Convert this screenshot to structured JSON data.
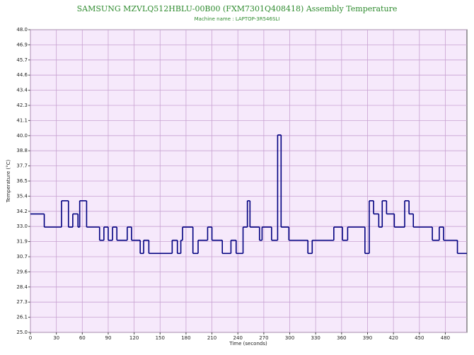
{
  "chart_data": {
    "type": "step-line",
    "title": "SAMSUNG MZVLQ512HBLU-00B00 (FXM7301Q408418) Assembly Temperature",
    "subtitle": "Machine name : LAPTOP-3R546SLI",
    "x_label": "Time (seconds)",
    "y_label": "Temperature (°C)",
    "grid": true,
    "background": "#f6e9fb",
    "grid_color": "#c8a2d2",
    "xlim": [
      0,
      505
    ],
    "xticks": [
      0,
      30,
      60,
      90,
      120,
      150,
      180,
      210,
      240,
      270,
      300,
      330,
      360,
      390,
      420,
      450,
      480
    ],
    "ylim": [
      25,
      48
    ],
    "yticks": [
      {
        "value": 25,
        "label": "25.0"
      },
      {
        "value": 26.15,
        "label": "26.1"
      },
      27.3,
      {
        "value": 28.45,
        "label": "28.4"
      },
      29.6,
      {
        "value": 30.75,
        "label": "30.7"
      },
      31.9,
      {
        "value": 33.05,
        "label": "33.0"
      },
      34.2,
      {
        "value": 35.35,
        "label": "35.4"
      },
      36.5,
      {
        "value": 37.65,
        "label": "37.7"
      },
      38.8,
      {
        "value": 39.95,
        "label": "40.0"
      },
      41.1,
      {
        "value": 42.25,
        "label": "42.3"
      },
      43.4,
      {
        "value": 44.55,
        "label": "44.6"
      },
      45.7,
      {
        "value": 46.85,
        "label": "46.9"
      },
      {
        "value": 48,
        "label": "48.0"
      }
    ],
    "series": [
      {
        "color": "#000080",
        "x": [
          0,
          16,
          36,
          44,
          49,
          55,
          57,
          65,
          80,
          85,
          90,
          95,
          100,
          112,
          117,
          127,
          131,
          137,
          164,
          170,
          174,
          176,
          188,
          194,
          205,
          210,
          222,
          232,
          238,
          246,
          251,
          254,
          265,
          268,
          279,
          286,
          290,
          299,
          321,
          326,
          351,
          361,
          367,
          387,
          392,
          397,
          403,
          407,
          412,
          421,
          433,
          438,
          443,
          465,
          473,
          478,
          494
        ],
        "values": [
          34,
          33,
          35,
          33,
          34,
          33,
          35,
          33,
          32,
          33,
          32,
          33,
          32,
          33,
          32,
          31,
          32,
          31,
          32,
          31,
          32,
          33,
          31,
          32,
          33,
          32,
          31,
          32,
          31,
          33,
          35,
          33,
          32,
          33,
          32,
          40,
          33,
          32,
          31,
          32,
          33,
          32,
          33,
          31,
          35,
          34,
          33,
          35,
          34,
          33,
          35,
          34,
          33,
          32,
          33,
          32,
          31
        ]
      }
    ]
  }
}
